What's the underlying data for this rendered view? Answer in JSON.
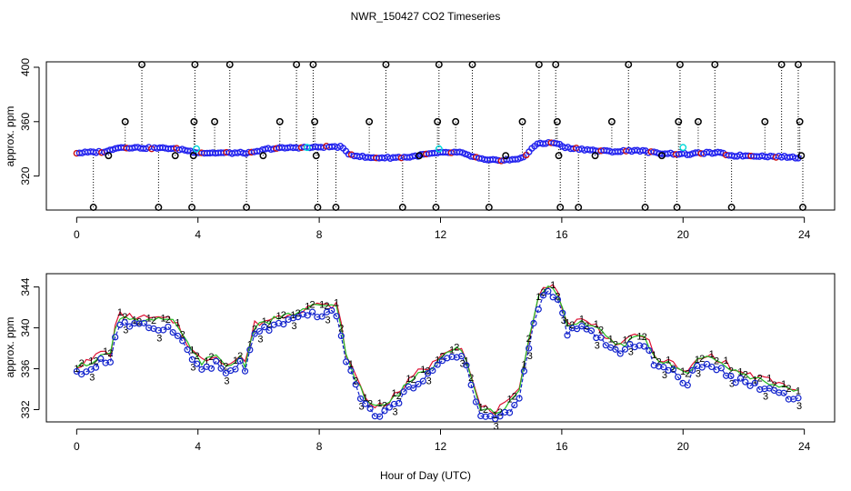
{
  "figure": {
    "title": "NWR_150427  CO2 Timeseries",
    "xlabel": "Hour of Day (UTC)"
  },
  "colors": {
    "dropline": "#000000",
    "outlier": "#000000",
    "filtered": "#00d8d8",
    "main_fill": "#2222ee",
    "main_accent": "#cc1111",
    "series1": "#dd1133",
    "series2": "#22bb22",
    "series3": "#1122cc"
  },
  "chart_data": [
    {
      "type": "scatter",
      "panel": "top",
      "ylabel": "approx. ppm",
      "xlim": [
        -1,
        25
      ],
      "ylim": [
        295,
        404
      ],
      "xticks": [
        0,
        4,
        8,
        12,
        16,
        20,
        24
      ],
      "yticks": [
        320,
        360,
        400
      ],
      "baseline": [
        [
          0,
          337
        ],
        [
          0.5,
          337.5
        ],
        [
          1.0,
          338
        ],
        [
          1.3,
          341
        ],
        [
          1.8,
          341
        ],
        [
          2.5,
          340.5
        ],
        [
          3.0,
          340.5
        ],
        [
          3.5,
          339.5
        ],
        [
          3.8,
          338
        ],
        [
          4.2,
          337
        ],
        [
          5.2,
          337
        ],
        [
          5.8,
          337
        ],
        [
          6.3,
          340
        ],
        [
          7.2,
          341
        ],
        [
          7.8,
          341
        ],
        [
          8.2,
          341.5
        ],
        [
          8.7,
          341.5
        ],
        [
          9.0,
          336
        ],
        [
          9.6,
          333.5
        ],
        [
          10.3,
          333.5
        ],
        [
          11.0,
          334
        ],
        [
          11.5,
          336
        ],
        [
          12.0,
          337
        ],
        [
          12.6,
          337.5
        ],
        [
          13.1,
          334
        ],
        [
          13.5,
          331.5
        ],
        [
          14.5,
          332
        ],
        [
          14.8,
          335
        ],
        [
          15.2,
          344
        ],
        [
          15.8,
          344.5
        ],
        [
          16.1,
          341
        ],
        [
          16.6,
          340
        ],
        [
          17.2,
          338.5
        ],
        [
          17.8,
          338
        ],
        [
          18.5,
          339
        ],
        [
          19.1,
          337
        ],
        [
          19.6,
          336.5
        ],
        [
          20.2,
          336
        ],
        [
          20.6,
          337
        ],
        [
          21.2,
          337
        ],
        [
          21.6,
          335
        ],
        [
          22.3,
          335
        ],
        [
          22.8,
          334.5
        ],
        [
          23.5,
          334
        ],
        [
          23.8,
          333.5
        ]
      ],
      "outliers": [
        {
          "x": 0.55,
          "y": 297
        },
        {
          "x": 1.05,
          "y": 335
        },
        {
          "x": 1.6,
          "y": 360
        },
        {
          "x": 2.15,
          "y": 402
        },
        {
          "x": 2.7,
          "y": 297
        },
        {
          "x": 3.25,
          "y": 335
        },
        {
          "x": 3.8,
          "y": 297
        },
        {
          "x": 3.85,
          "y": 335
        },
        {
          "x": 3.87,
          "y": 360
        },
        {
          "x": 3.9,
          "y": 402
        },
        {
          "x": 4.55,
          "y": 360
        },
        {
          "x": 5.05,
          "y": 402
        },
        {
          "x": 5.6,
          "y": 297
        },
        {
          "x": 6.15,
          "y": 335
        },
        {
          "x": 6.7,
          "y": 360
        },
        {
          "x": 7.25,
          "y": 402
        },
        {
          "x": 7.8,
          "y": 402
        },
        {
          "x": 7.85,
          "y": 360
        },
        {
          "x": 7.9,
          "y": 335
        },
        {
          "x": 7.95,
          "y": 297
        },
        {
          "x": 8.55,
          "y": 297
        },
        {
          "x": 9.65,
          "y": 360
        },
        {
          "x": 10.2,
          "y": 402
        },
        {
          "x": 10.75,
          "y": 297
        },
        {
          "x": 11.3,
          "y": 335
        },
        {
          "x": 11.85,
          "y": 297
        },
        {
          "x": 11.9,
          "y": 360
        },
        {
          "x": 11.95,
          "y": 402
        },
        {
          "x": 12.5,
          "y": 360
        },
        {
          "x": 13.05,
          "y": 402
        },
        {
          "x": 13.6,
          "y": 297
        },
        {
          "x": 14.15,
          "y": 335
        },
        {
          "x": 14.7,
          "y": 360
        },
        {
          "x": 15.25,
          "y": 402
        },
        {
          "x": 15.8,
          "y": 402
        },
        {
          "x": 15.85,
          "y": 360
        },
        {
          "x": 15.9,
          "y": 335
        },
        {
          "x": 15.95,
          "y": 297
        },
        {
          "x": 16.55,
          "y": 297
        },
        {
          "x": 17.1,
          "y": 335
        },
        {
          "x": 17.65,
          "y": 360
        },
        {
          "x": 18.2,
          "y": 402
        },
        {
          "x": 18.75,
          "y": 297
        },
        {
          "x": 19.3,
          "y": 335
        },
        {
          "x": 19.8,
          "y": 297
        },
        {
          "x": 19.85,
          "y": 360
        },
        {
          "x": 19.9,
          "y": 402
        },
        {
          "x": 20.5,
          "y": 360
        },
        {
          "x": 21.05,
          "y": 402
        },
        {
          "x": 21.6,
          "y": 297
        },
        {
          "x": 22.7,
          "y": 360
        },
        {
          "x": 23.25,
          "y": 402
        },
        {
          "x": 23.8,
          "y": 402
        },
        {
          "x": 23.85,
          "y": 360
        },
        {
          "x": 23.9,
          "y": 335
        },
        {
          "x": 23.95,
          "y": 297
        }
      ],
      "filtered_points": [
        {
          "x": 3.95,
          "y": 340
        },
        {
          "x": 11.95,
          "y": 340
        },
        {
          "x": 20.0,
          "y": 341
        },
        {
          "x": 7.6,
          "y": 341
        }
      ]
    },
    {
      "type": "line",
      "panel": "bottom",
      "ylabel": "approx. ppm",
      "xlim": [
        -1,
        25
      ],
      "ylim": [
        330.8,
        345.3
      ],
      "xticks": [
        0,
        4,
        8,
        12,
        16,
        20,
        24
      ],
      "yticks": [
        332,
        336,
        340,
        344
      ],
      "series": [
        {
          "name": "1",
          "offset": 0.3,
          "jitter": 0.35
        },
        {
          "name": "2",
          "offset": 0.15,
          "jitter": 0.3
        },
        {
          "name": "3",
          "offset": -0.55,
          "jitter": 0.35
        }
      ],
      "baseline": [
        [
          0,
          336
        ],
        [
          0.5,
          336.5
        ],
        [
          0.8,
          337.5
        ],
        [
          1.1,
          337
        ],
        [
          1.35,
          341
        ],
        [
          1.8,
          340.8
        ],
        [
          2.5,
          340.6
        ],
        [
          3.0,
          340.5
        ],
        [
          3.3,
          340.3
        ],
        [
          3.6,
          338.5
        ],
        [
          3.8,
          337.5
        ],
        [
          4.1,
          336.5
        ],
        [
          4.6,
          337
        ],
        [
          5.0,
          336
        ],
        [
          5.4,
          337
        ],
        [
          5.6,
          336
        ],
        [
          5.8,
          340
        ],
        [
          6.3,
          340.5
        ],
        [
          6.9,
          341
        ],
        [
          7.4,
          341.5
        ],
        [
          7.8,
          342
        ],
        [
          8.1,
          341.8
        ],
        [
          8.6,
          342
        ],
        [
          8.9,
          337
        ],
        [
          9.2,
          335
        ],
        [
          9.5,
          333
        ],
        [
          9.8,
          332
        ],
        [
          10.3,
          332.5
        ],
        [
          10.8,
          334
        ],
        [
          11.3,
          335.5
        ],
        [
          11.7,
          336
        ],
        [
          12.1,
          337.5
        ],
        [
          12.5,
          338
        ],
        [
          12.8,
          337.5
        ],
        [
          13.0,
          335
        ],
        [
          13.3,
          332
        ],
        [
          13.8,
          331.5
        ],
        [
          14.3,
          332.5
        ],
        [
          14.6,
          333.5
        ],
        [
          14.8,
          337
        ],
        [
          15.0,
          340
        ],
        [
          15.3,
          343.5
        ],
        [
          15.6,
          344
        ],
        [
          15.9,
          343
        ],
        [
          16.2,
          340
        ],
        [
          16.6,
          340.5
        ],
        [
          17.1,
          340
        ],
        [
          17.6,
          338.5
        ],
        [
          18.0,
          338
        ],
        [
          18.4,
          339
        ],
        [
          18.8,
          339
        ],
        [
          19.0,
          337
        ],
        [
          19.4,
          336.5
        ],
        [
          19.8,
          336
        ],
        [
          20.1,
          335
        ],
        [
          20.4,
          336.5
        ],
        [
          20.9,
          337
        ],
        [
          21.3,
          336.5
        ],
        [
          21.7,
          335.5
        ],
        [
          22.3,
          335
        ],
        [
          22.9,
          334.5
        ],
        [
          23.4,
          334
        ],
        [
          23.8,
          333.5
        ]
      ]
    }
  ]
}
